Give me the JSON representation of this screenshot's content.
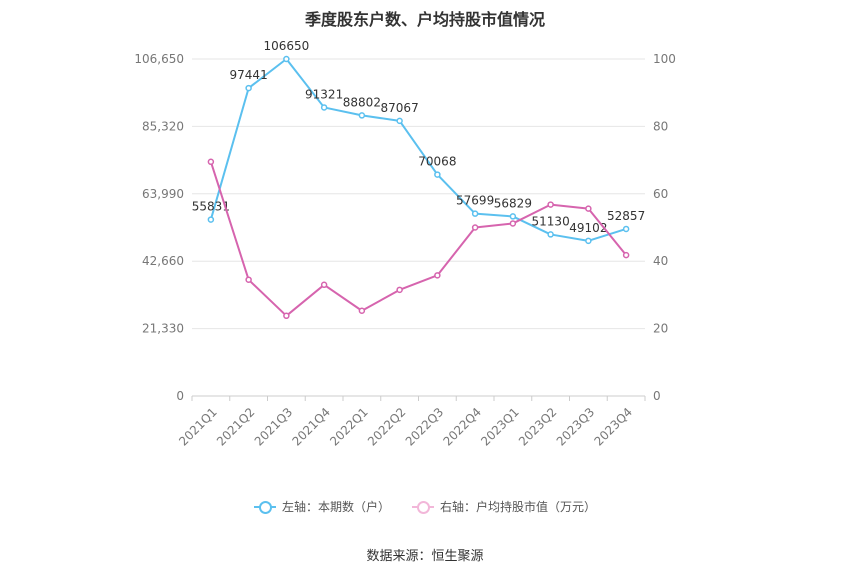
{
  "chart_data": {
    "type": "line",
    "title": "季度股东户数、户均持股市值情况",
    "categories": [
      "2021Q1",
      "2021Q2",
      "2021Q3",
      "2021Q4",
      "2022Q1",
      "2022Q2",
      "2022Q3",
      "2022Q4",
      "2023Q1",
      "2023Q2",
      "2023Q3",
      "2023Q4"
    ],
    "left_axis": {
      "ticks": [
        "0",
        "21,330",
        "42,660",
        "63,990",
        "85,320",
        "106,650"
      ],
      "min": 0,
      "max": 106650
    },
    "right_axis": {
      "ticks": [
        "0",
        "20",
        "40",
        "60",
        "80",
        "100"
      ],
      "min": 0,
      "max": 100
    },
    "series": [
      {
        "name": "左轴：本期数（户）",
        "axis": "left",
        "color": "#5bc0ef",
        "values": [
          55831,
          97441,
          106650,
          91321,
          88802,
          87067,
          70068,
          57699,
          56829,
          51130,
          49102,
          52857
        ],
        "labels": [
          "55831",
          "97441",
          "106650",
          "91321",
          "88802",
          "87067",
          "70068",
          "57699",
          "56829",
          "51130",
          "49102",
          "52857"
        ]
      },
      {
        "name": "右轴：户均持股市值（万元）",
        "axis": "right",
        "color": "#d664ae",
        "values": [
          69.5,
          34.5,
          23.8,
          33.0,
          25.3,
          31.5,
          35.8,
          50.0,
          51.2,
          56.8,
          55.6,
          41.8
        ]
      }
    ],
    "grid": true,
    "legend_position": "bottom"
  },
  "source": "数据来源：恒生聚源"
}
